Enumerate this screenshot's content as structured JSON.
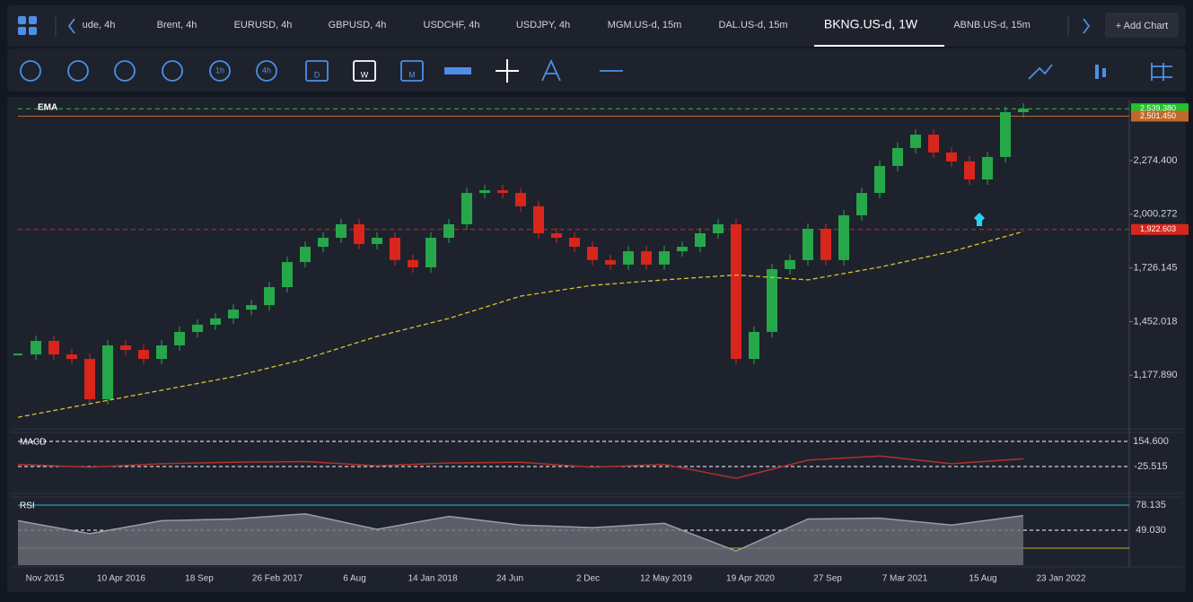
{
  "tabs": {
    "items": [
      "ude, 4h",
      "Brent, 4h",
      "EURUSD, 4h",
      "GBPUSD, 4h",
      "USDCHF, 4h",
      "USDJPY, 4h",
      "MGM.US-d, 15m",
      "DAL.US-d, 15m",
      "BKNG.US-d, 1W",
      "ABNB.US-d, 15m"
    ],
    "active": 8,
    "add_button": "+ Add Chart"
  },
  "toolbar": {
    "labels": [
      "1h",
      "4h",
      "D",
      "W",
      "M"
    ]
  },
  "chart_data": {
    "type": "candlestick",
    "indicator": "EMA",
    "close": [
      1284,
      1353,
      1284,
      1261,
      1055,
      1330,
      1307,
      1261,
      1330,
      1399,
      1436,
      1468,
      1513,
      1536,
      1628,
      1756,
      1834,
      1880,
      1949,
      1848,
      1880,
      1766,
      1729,
      1880,
      1949,
      2109,
      2123,
      2109,
      2041,
      1903,
      1880,
      1834,
      1766,
      1743,
      1811,
      1743,
      1811,
      1834,
      1903,
      1949,
      1261,
      1399,
      1720,
      1766,
      1926,
      1766,
      1995,
      2109,
      2247,
      2339,
      2407,
      2316,
      2270,
      2178,
      2293,
      2522,
      2539.38
    ],
    "ema": [
      963,
      1032,
      1101,
      1170,
      1261,
      1376,
      1468,
      1582,
      1637,
      1665,
      1690,
      1665,
      1730,
      1810,
      1912
    ],
    "up_color": "#26a84a",
    "down_color": "#d8261c",
    "ema_color": "#d9c22e",
    "ylim": [
      903.8,
      2581.5
    ],
    "yticks": [
      {
        "value": 2274.4,
        "label": "2,274.400"
      },
      {
        "value": 2000.272,
        "label": "2,000.272"
      },
      {
        "value": 1726.145,
        "label": "1,726.145"
      },
      {
        "value": 1452.018,
        "label": "1,452.018"
      },
      {
        "value": 1177.89,
        "label": "1,177.890"
      }
    ],
    "levels": [
      {
        "value": 2539.38,
        "label": "2,539.380",
        "color": "#22c12e",
        "style": "dashed"
      },
      {
        "value": 2501.45,
        "label": "2,501.450",
        "color": "#c0692a",
        "style": "solid"
      },
      {
        "value": 1922.603,
        "label": "1,922.603",
        "color": "#d8261c",
        "style": "dashed"
      }
    ],
    "x_labels": [
      "Nov 2015",
      "10 Apr 2016",
      "18 Sep",
      "26 Feb 2017",
      "6 Aug",
      "14 Jan 2018",
      "24 Jun",
      "2 Dec",
      "12 May 2019",
      "19 Apr 2020",
      "27 Sep",
      "7 Mar 2021",
      "15 Aug",
      "23 Jan 2022"
    ]
  },
  "macd": {
    "title": "MACD",
    "values": [
      -10,
      -30,
      -5,
      5,
      10,
      -20,
      0,
      5,
      -30,
      -10,
      -110,
      20,
      50,
      -5,
      30
    ],
    "ylim": [
      -218.4,
      206
    ],
    "yticks": [
      {
        "value": 154.6,
        "label": "154.600"
      },
      {
        "value": -25.515,
        "label": "-25.515"
      }
    ]
  },
  "rsi": {
    "title": "RSI",
    "values": [
      60,
      45,
      60,
      62,
      68,
      50,
      65,
      55,
      52,
      57,
      25,
      62,
      63,
      55,
      66
    ],
    "ylim": [
      8.5,
      86.4
    ],
    "yticks": [
      {
        "value": 78.135,
        "label": "78.135"
      },
      {
        "value": 49.03,
        "label": "49.030"
      }
    ]
  }
}
